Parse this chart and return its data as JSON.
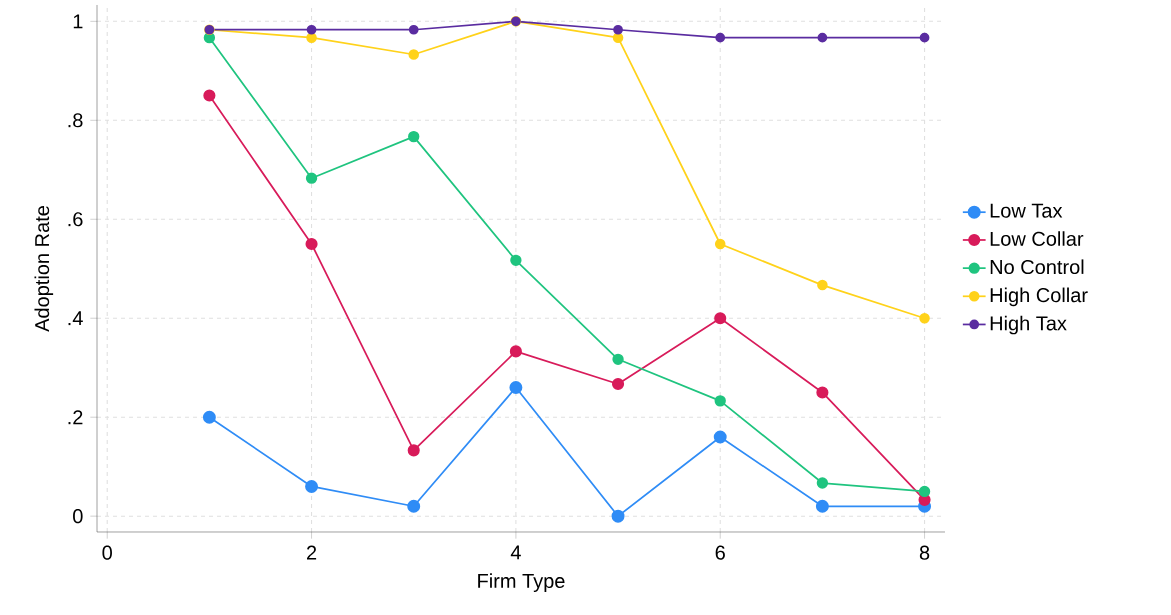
{
  "chart_data": {
    "type": "line",
    "xlabel": "Firm Type",
    "ylabel": "Adoption Rate",
    "x": [
      1,
      2,
      3,
      4,
      5,
      6,
      7,
      8
    ],
    "series": [
      {
        "name": "Low Tax",
        "color": "#2f8cf6",
        "values": [
          0.2,
          0.06,
          0.02,
          0.26,
          0,
          0.16,
          0.02,
          0.02
        ]
      },
      {
        "name": "Low Collar",
        "color": "#d81b5a",
        "values": [
          0.85,
          0.55,
          0.133,
          0.333,
          0.267,
          0.4,
          0.25,
          0.033
        ]
      },
      {
        "name": "No Control",
        "color": "#1fc47f",
        "values": [
          0.967,
          0.683,
          0.767,
          0.517,
          0.317,
          0.233,
          0.067,
          0.05
        ]
      },
      {
        "name": "High Collar",
        "color": "#ffd21a",
        "values": [
          0.983,
          0.967,
          0.933,
          1,
          0.967,
          0.55,
          0.467,
          0.4
        ]
      },
      {
        "name": "High Tax",
        "color": "#5a2ca0",
        "values": [
          0.983,
          0.983,
          0.983,
          1,
          0.983,
          0.967,
          0.967,
          0.967
        ]
      }
    ],
    "xlim": [
      -0.1,
      8.2
    ],
    "ylim": [
      -0.032,
      1.033
    ],
    "xticks": [
      0,
      2,
      4,
      6,
      8
    ],
    "yticks": [
      0,
      {
        "value": 0.2,
        "label": ".2"
      },
      {
        "value": 0.4,
        "label": ".4"
      },
      {
        "value": 0.6,
        "label": ".6"
      },
      {
        "value": 0.8,
        "label": ".8"
      },
      1
    ],
    "grid": true,
    "legend": "right",
    "marker": "circle",
    "line_style": "solid"
  }
}
